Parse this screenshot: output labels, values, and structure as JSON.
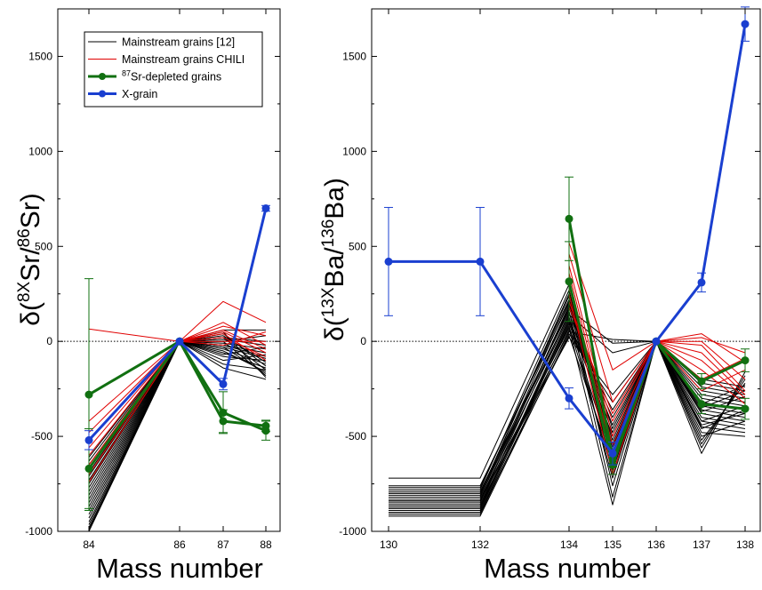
{
  "chart_data": [
    {
      "type": "line",
      "panel": "left",
      "x": [
        84,
        86,
        87,
        88
      ],
      "xticks": [
        "84",
        "86",
        "87",
        "88"
      ],
      "xlabel": "Mass number",
      "ylabel": {
        "prefix": "δ(",
        "sup1": "8X",
        "mid": "Sr/",
        "sup2": "86",
        "suffix": "Sr)"
      },
      "ylim": [
        -1000,
        1750
      ],
      "yticks": [
        "-1000",
        "-500",
        "0",
        "500",
        "1000",
        "1500"
      ],
      "zero_line": true,
      "legend": {
        "placement": "top-left",
        "entries": [
          {
            "label": "Mainstream grains [12]",
            "color": "#000000",
            "marker": "none"
          },
          {
            "label": "Mainstream grains CHILI",
            "color": "#e00000",
            "marker": "none"
          },
          {
            "label_sup": "87",
            "label": "Sr-depleted grains",
            "color": "#117011",
            "marker": "circle"
          },
          {
            "label": "X-grain",
            "color": "#1a3fd0",
            "marker": "circle"
          }
        ]
      },
      "groups": [
        {
          "name": "Mainstream grains [12]",
          "color": "#000000",
          "values": [
            [
              -1000,
              0,
              -50,
              -160
            ],
            [
              -990,
              0,
              -40,
              -120
            ],
            [
              -980,
              0,
              -30,
              -90
            ],
            [
              -965,
              0,
              -20,
              -60
            ],
            [
              -950,
              0,
              -10,
              -40
            ],
            [
              -930,
              0,
              0,
              -180
            ],
            [
              -910,
              0,
              10,
              -20
            ],
            [
              -890,
              0,
              20,
              0
            ],
            [
              -870,
              0,
              -60,
              -140
            ],
            [
              -850,
              0,
              -80,
              -100
            ],
            [
              -830,
              0,
              -100,
              -70
            ],
            [
              -810,
              0,
              -120,
              -150
            ],
            [
              -790,
              0,
              30,
              -110
            ],
            [
              -770,
              0,
              40,
              -130
            ],
            [
              -750,
              0,
              -30,
              -170
            ],
            [
              -730,
              0,
              0,
              30
            ],
            [
              -710,
              0,
              -20,
              -80
            ],
            [
              -690,
              0,
              50,
              -190
            ],
            [
              -670,
              0,
              -140,
              -200
            ],
            [
              -650,
              0,
              60,
              60
            ],
            [
              -630,
              0,
              -70,
              -30
            ],
            [
              -610,
              0,
              20,
              -150
            ]
          ]
        },
        {
          "name": "Mainstream grains CHILI",
          "color": "#e00000",
          "values": [
            [
              65,
              0,
              210,
              100
            ],
            [
              -420,
              0,
              80,
              30
            ],
            [
              -480,
              0,
              60,
              -40
            ],
            [
              -520,
              0,
              40,
              -100
            ],
            [
              -560,
              0,
              20,
              -80
            ],
            [
              -600,
              0,
              0,
              0
            ],
            [
              -650,
              0,
              -20,
              50
            ],
            [
              -700,
              0,
              100,
              -20
            ],
            [
              -740,
              0,
              50,
              -60
            ]
          ]
        },
        {
          "name": "Sr-depleted grains",
          "color": "#117011",
          "values": [
            [
              -280,
              0,
              -375,
              -470
            ],
            [
              -670,
              0,
              -420,
              -445
            ]
          ],
          "errors": [
            [
              610,
              0,
              110,
              50
            ],
            [
              210,
              0,
              60,
              30
            ]
          ]
        },
        {
          "name": "X-grain",
          "color": "#1a3fd0",
          "values": [
            [
              -520,
              0,
              -225,
              700
            ]
          ],
          "errors": [
            [
              50,
              0,
              30,
              15
            ]
          ]
        }
      ]
    },
    {
      "type": "line",
      "panel": "right",
      "x": [
        130,
        132,
        134,
        135,
        136,
        137,
        138
      ],
      "xticks": [
        "130",
        "132",
        "134",
        "135",
        "136",
        "137",
        "138"
      ],
      "xlabel": "Mass number",
      "ylabel": {
        "prefix": "δ(",
        "sup1": "13X",
        "mid": "Ba/",
        "sup2": "136",
        "suffix": "Ba)"
      },
      "ylim": [
        -1000,
        1750
      ],
      "yticks": [
        "-1000",
        "-500",
        "0",
        "500",
        "1000",
        "1500"
      ],
      "zero_line": true,
      "groups": [
        {
          "name": "Mainstream grains [12]",
          "color": "#000000",
          "values": [
            [
              -720,
              -720,
              300,
              -700,
              0,
              -480,
              -500
            ],
            [
              -780,
              -780,
              270,
              -650,
              0,
              -450,
              -480
            ],
            [
              -800,
              -800,
              240,
              -600,
              0,
              -420,
              -460
            ],
            [
              -820,
              -820,
              210,
              -560,
              0,
              -400,
              -440
            ],
            [
              -840,
              -840,
              180,
              -520,
              0,
              -380,
              -420
            ],
            [
              -860,
              -860,
              150,
              -480,
              0,
              -360,
              -400
            ],
            [
              -880,
              -880,
              120,
              -440,
              0,
              -340,
              -380
            ],
            [
              -900,
              -900,
              90,
              -400,
              0,
              -320,
              -360
            ],
            [
              -910,
              -910,
              60,
              -360,
              0,
              -300,
              -340
            ],
            [
              -920,
              -920,
              40,
              -320,
              0,
              -280,
              -320
            ],
            [
              -840,
              -840,
              20,
              -280,
              0,
              -260,
              -300
            ],
            [
              -880,
              -880,
              100,
              -620,
              0,
              -240,
              -280
            ],
            [
              -790,
              -790,
              160,
              -820,
              0,
              -220,
              -260
            ],
            [
              -760,
              -760,
              200,
              -760,
              0,
              -200,
              -240
            ],
            [
              -830,
              -830,
              130,
              -720,
              0,
              -520,
              -220
            ],
            [
              -870,
              -870,
              80,
              -680,
              0,
              -540,
              -200
            ],
            [
              -900,
              -900,
              30,
              -640,
              0,
              -560,
              -180
            ],
            [
              -810,
              -810,
              250,
              -580,
              0,
              -590,
              -160
            ],
            [
              -850,
              -850,
              190,
              -540,
              0,
              -460,
              -360
            ],
            [
              -890,
              -890,
              110,
              -500,
              0,
              -440,
              -380
            ],
            [
              -770,
              -770,
              220,
              -460,
              0,
              -420,
              -340
            ],
            [
              -820,
              -820,
              170,
              -10,
              0,
              -330,
              -230
            ],
            [
              -860,
              -860,
              50,
              10,
              0,
              -350,
              -260
            ],
            [
              -800,
              -800,
              140,
              -60,
              0,
              -370,
              -290
            ],
            [
              -840,
              -840,
              70,
              -860,
              0,
              -500,
              -420
            ]
          ]
        },
        {
          "name": "Mainstream grains CHILI",
          "color": "#e00000",
          "values": [
            [
              null,
              null,
              520,
              -150,
              0,
              40,
              -110
            ],
            [
              null,
              null,
              460,
              -320,
              0,
              20,
              -60
            ],
            [
              null,
              null,
              400,
              -500,
              0,
              0,
              -200
            ],
            [
              null,
              null,
              360,
              -550,
              0,
              -20,
              -260
            ],
            [
              null,
              null,
              330,
              -600,
              0,
              -60,
              -280
            ],
            [
              null,
              null,
              290,
              -650,
              0,
              -100,
              -300
            ],
            [
              null,
              null,
              250,
              -700,
              0,
              -150,
              -330
            ],
            [
              null,
              null,
              210,
              -420,
              0,
              -200,
              -90
            ],
            [
              null,
              null,
              180,
              -380,
              0,
              -260,
              -150
            ]
          ]
        },
        {
          "name": "Sr-depleted grains",
          "color": "#117011",
          "values": [
            [
              null,
              null,
              645,
              -620,
              0,
              -210,
              -100
            ],
            [
              null,
              null,
              315,
              -650,
              0,
              -330,
              -355
            ]
          ],
          "errors": [
            [
              null,
              null,
              220,
              40,
              0,
              40,
              60
            ],
            [
              null,
              null,
              210,
              50,
              0,
              50,
              55
            ]
          ]
        },
        {
          "name": "X-grain",
          "color": "#1a3fd0",
          "values": [
            [
              420,
              420,
              -300,
              -590,
              0,
              310,
              1670
            ]
          ],
          "errors": [
            [
              285,
              285,
              55,
              60,
              0,
              50,
              90
            ]
          ]
        }
      ]
    }
  ]
}
